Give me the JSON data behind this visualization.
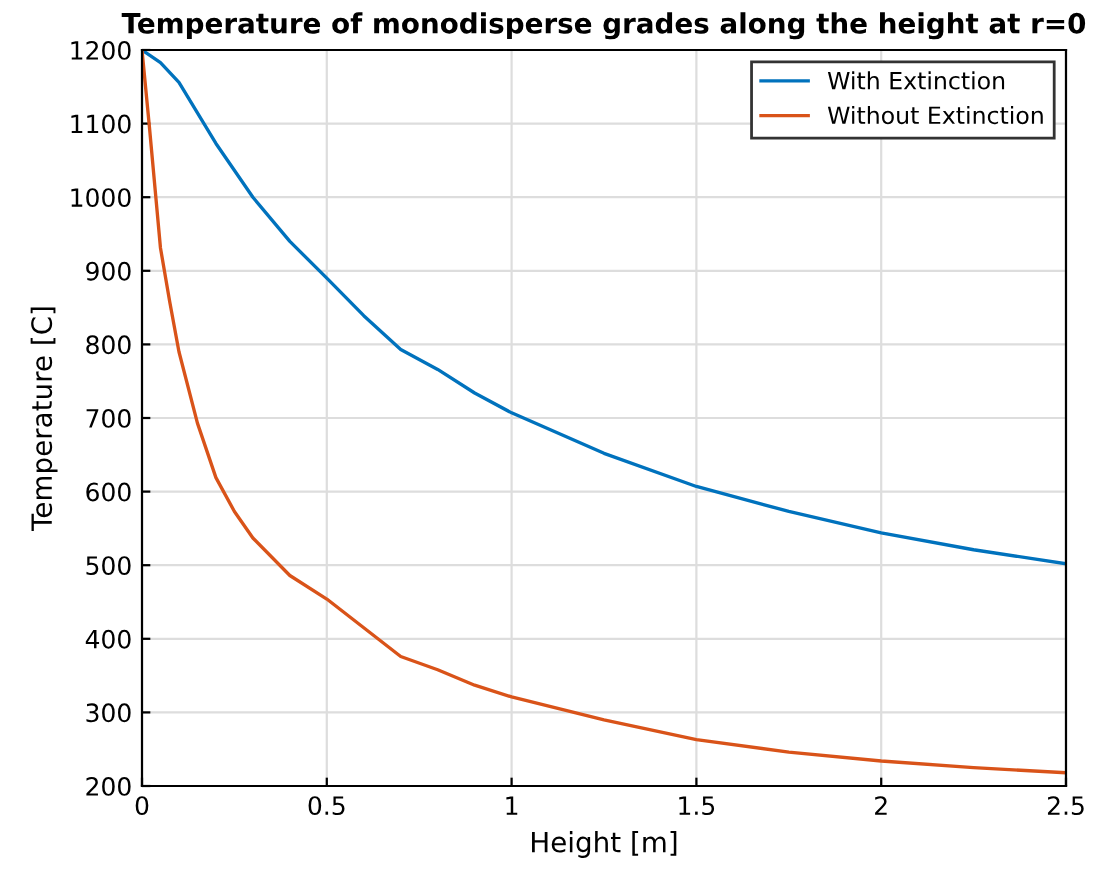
{
  "chart_data": {
    "type": "line",
    "title": "Temperature of monodisperse grades along the height at r=0",
    "xlabel": "Height [m]",
    "ylabel": "Temperature [C]",
    "xlim": [
      0,
      2.5
    ],
    "ylim": [
      200,
      1200
    ],
    "xticks": [
      0,
      0.5,
      1,
      1.5,
      2,
      2.5
    ],
    "yticks": [
      200,
      300,
      400,
      500,
      600,
      700,
      800,
      900,
      1000,
      1100,
      1200
    ],
    "grid": true,
    "legend": "top right",
    "series": [
      {
        "name": "With Extinction",
        "color": "#0072bd",
        "x": [
          0,
          0.05,
          0.1,
          0.2,
          0.3,
          0.4,
          0.5,
          0.6,
          0.7,
          0.8,
          0.9,
          1.0,
          1.25,
          1.5,
          1.75,
          2.0,
          2.25,
          2.5
        ],
        "values": [
          1200,
          1183,
          1156,
          1073,
          1000,
          940,
          890,
          839,
          793,
          766,
          734,
          707,
          652,
          607,
          573,
          544,
          521,
          502
        ]
      },
      {
        "name": "Without Extinction",
        "color": "#d95319",
        "x": [
          0,
          0.02,
          0.05,
          0.075,
          0.1,
          0.15,
          0.2,
          0.25,
          0.3,
          0.4,
          0.5,
          0.6,
          0.7,
          0.8,
          0.9,
          1.0,
          1.25,
          1.5,
          1.75,
          2.0,
          2.25,
          2.5
        ],
        "values": [
          1200,
          1096,
          931,
          858,
          790,
          693,
          619,
          573,
          537,
          486,
          454,
          415,
          376,
          358,
          337,
          321,
          290,
          263,
          246,
          234,
          225,
          218
        ]
      }
    ]
  }
}
